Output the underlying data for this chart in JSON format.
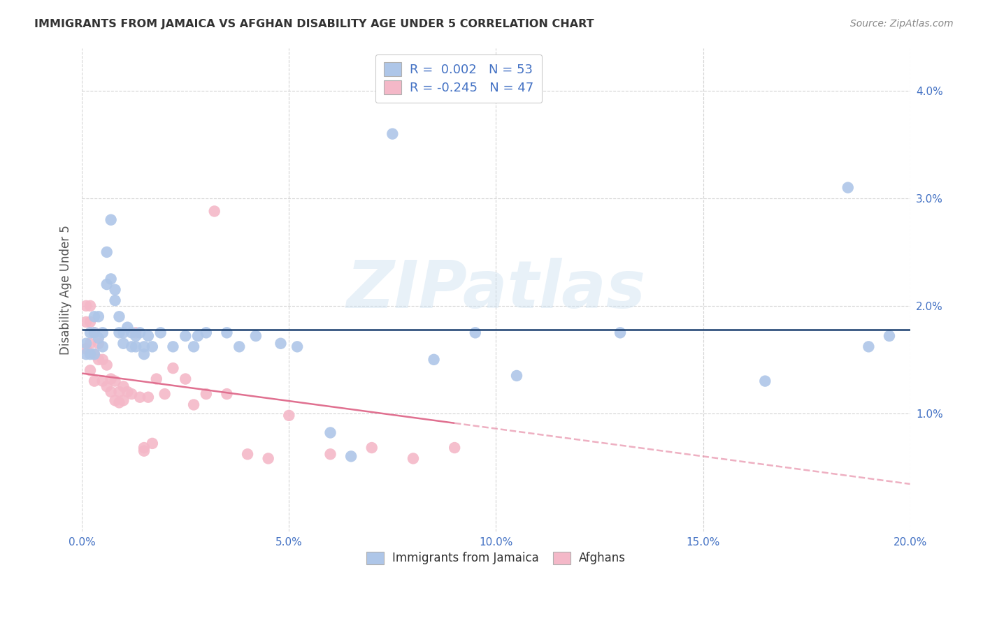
{
  "title": "IMMIGRANTS FROM JAMAICA VS AFGHAN DISABILITY AGE UNDER 5 CORRELATION CHART",
  "source": "Source: ZipAtlas.com",
  "ylabel": "Disability Age Under 5",
  "xlim": [
    0.0,
    0.2
  ],
  "ylim": [
    -0.001,
    0.044
  ],
  "xticks": [
    0.0,
    0.05,
    0.1,
    0.15,
    0.2
  ],
  "xtick_labels": [
    "0.0%",
    "5.0%",
    "10.0%",
    "15.0%",
    "20.0%"
  ],
  "yticks": [
    0.01,
    0.02,
    0.03,
    0.04
  ],
  "ytick_labels": [
    "1.0%",
    "2.0%",
    "3.0%",
    "4.0%"
  ],
  "legend_labels_bottom": [
    "Immigrants from Jamaica",
    "Afghans"
  ],
  "r_jamaica": 0.002,
  "n_jamaica": 53,
  "r_afghan": -0.245,
  "n_afghan": 47,
  "blue_color": "#aec6e8",
  "pink_color": "#f4b8c8",
  "blue_line_color": "#1a3f6f",
  "pink_line_color": "#e07090",
  "watermark": "ZIPatlas",
  "bg_color": "#ffffff",
  "grid_color": "#d0d0d0",
  "title_color": "#333333",
  "axis_tick_color": "#4472c4",
  "jamaica_x": [
    0.001,
    0.001,
    0.002,
    0.002,
    0.003,
    0.003,
    0.003,
    0.004,
    0.004,
    0.005,
    0.005,
    0.006,
    0.006,
    0.007,
    0.007,
    0.008,
    0.008,
    0.009,
    0.009,
    0.01,
    0.01,
    0.011,
    0.012,
    0.012,
    0.013,
    0.013,
    0.014,
    0.015,
    0.015,
    0.016,
    0.017,
    0.019,
    0.022,
    0.025,
    0.027,
    0.028,
    0.03,
    0.035,
    0.038,
    0.042,
    0.048,
    0.052,
    0.06,
    0.065,
    0.075,
    0.085,
    0.095,
    0.105,
    0.13,
    0.165,
    0.185,
    0.19,
    0.195
  ],
  "jamaica_y": [
    0.0165,
    0.0155,
    0.0175,
    0.0155,
    0.019,
    0.0175,
    0.0155,
    0.019,
    0.017,
    0.0175,
    0.0162,
    0.025,
    0.022,
    0.028,
    0.0225,
    0.0215,
    0.0205,
    0.019,
    0.0175,
    0.0175,
    0.0165,
    0.018,
    0.0175,
    0.0162,
    0.0172,
    0.0162,
    0.0175,
    0.0162,
    0.0155,
    0.0172,
    0.0162,
    0.0175,
    0.0162,
    0.0172,
    0.0162,
    0.0172,
    0.0175,
    0.0175,
    0.0162,
    0.0172,
    0.0165,
    0.0162,
    0.0082,
    0.006,
    0.036,
    0.015,
    0.0175,
    0.0135,
    0.0175,
    0.013,
    0.031,
    0.0162,
    0.0172
  ],
  "afghan_x": [
    0.001,
    0.001,
    0.001,
    0.002,
    0.002,
    0.002,
    0.002,
    0.003,
    0.003,
    0.003,
    0.004,
    0.004,
    0.005,
    0.005,
    0.006,
    0.006,
    0.007,
    0.007,
    0.008,
    0.008,
    0.009,
    0.009,
    0.01,
    0.01,
    0.011,
    0.012,
    0.013,
    0.014,
    0.015,
    0.015,
    0.016,
    0.017,
    0.018,
    0.02,
    0.022,
    0.025,
    0.027,
    0.03,
    0.032,
    0.035,
    0.04,
    0.045,
    0.05,
    0.06,
    0.07,
    0.08,
    0.09
  ],
  "afghan_y": [
    0.02,
    0.0185,
    0.016,
    0.02,
    0.0185,
    0.0165,
    0.014,
    0.0175,
    0.0155,
    0.013,
    0.0165,
    0.015,
    0.015,
    0.013,
    0.0145,
    0.0125,
    0.0132,
    0.012,
    0.013,
    0.0112,
    0.012,
    0.011,
    0.0125,
    0.0112,
    0.012,
    0.0118,
    0.0175,
    0.0115,
    0.0068,
    0.0065,
    0.0115,
    0.0072,
    0.0132,
    0.0118,
    0.0142,
    0.0132,
    0.0108,
    0.0118,
    0.0288,
    0.0118,
    0.0062,
    0.0058,
    0.0098,
    0.0062,
    0.0068,
    0.0058,
    0.0068
  ]
}
